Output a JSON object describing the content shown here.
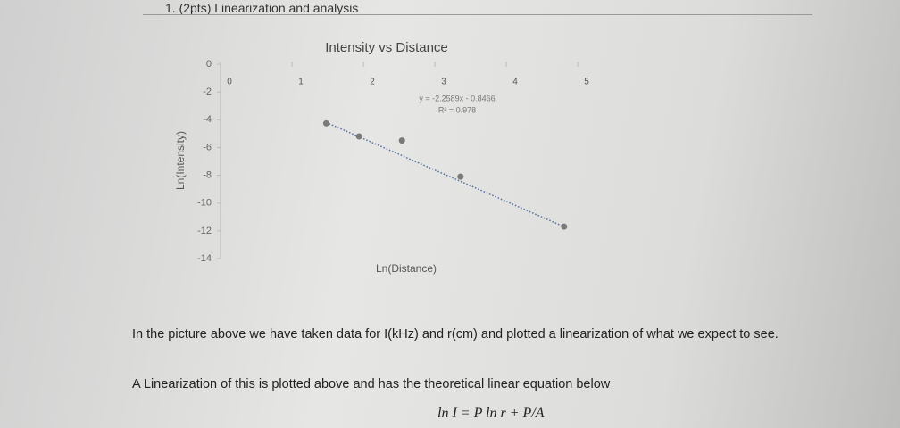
{
  "header": {
    "title": "1. (2pts) Linearization and analysis"
  },
  "chart_data": {
    "type": "scatter",
    "title": "Intensity vs Distance",
    "xlabel": "Ln(Distance)",
    "ylabel": "Ln(Intensity)",
    "x": [
      1.48,
      1.94,
      2.54,
      3.36,
      4.81
    ],
    "series": [
      {
        "name": "Ln(Intensity)",
        "color": "#7a7a7a",
        "values": [
          -4.26,
          -5.2,
          -5.5,
          -8.1,
          -11.7
        ]
      }
    ],
    "xlim": [
      0,
      5.2
    ],
    "xticks": [
      0,
      1,
      2,
      3,
      4,
      5
    ],
    "ylim": [
      -14,
      0
    ],
    "yticks": [
      0,
      -2,
      -4,
      -6,
      -8,
      -10,
      -12,
      -14
    ],
    "trendline": {
      "slope": -2.2589,
      "intercept": -0.8466,
      "label": "y = -2.2589x - 0.8466",
      "r2_label": "R² = 0.978"
    }
  },
  "paragraphs": [
    "In the picture above we have taken data for I(kHz) and r(cm) and plotted a linearization of what we expect to see.",
    "A Linearization of this is plotted above and has the theoretical linear equation below"
  ],
  "equation": "ln I = P ln r + P/A"
}
